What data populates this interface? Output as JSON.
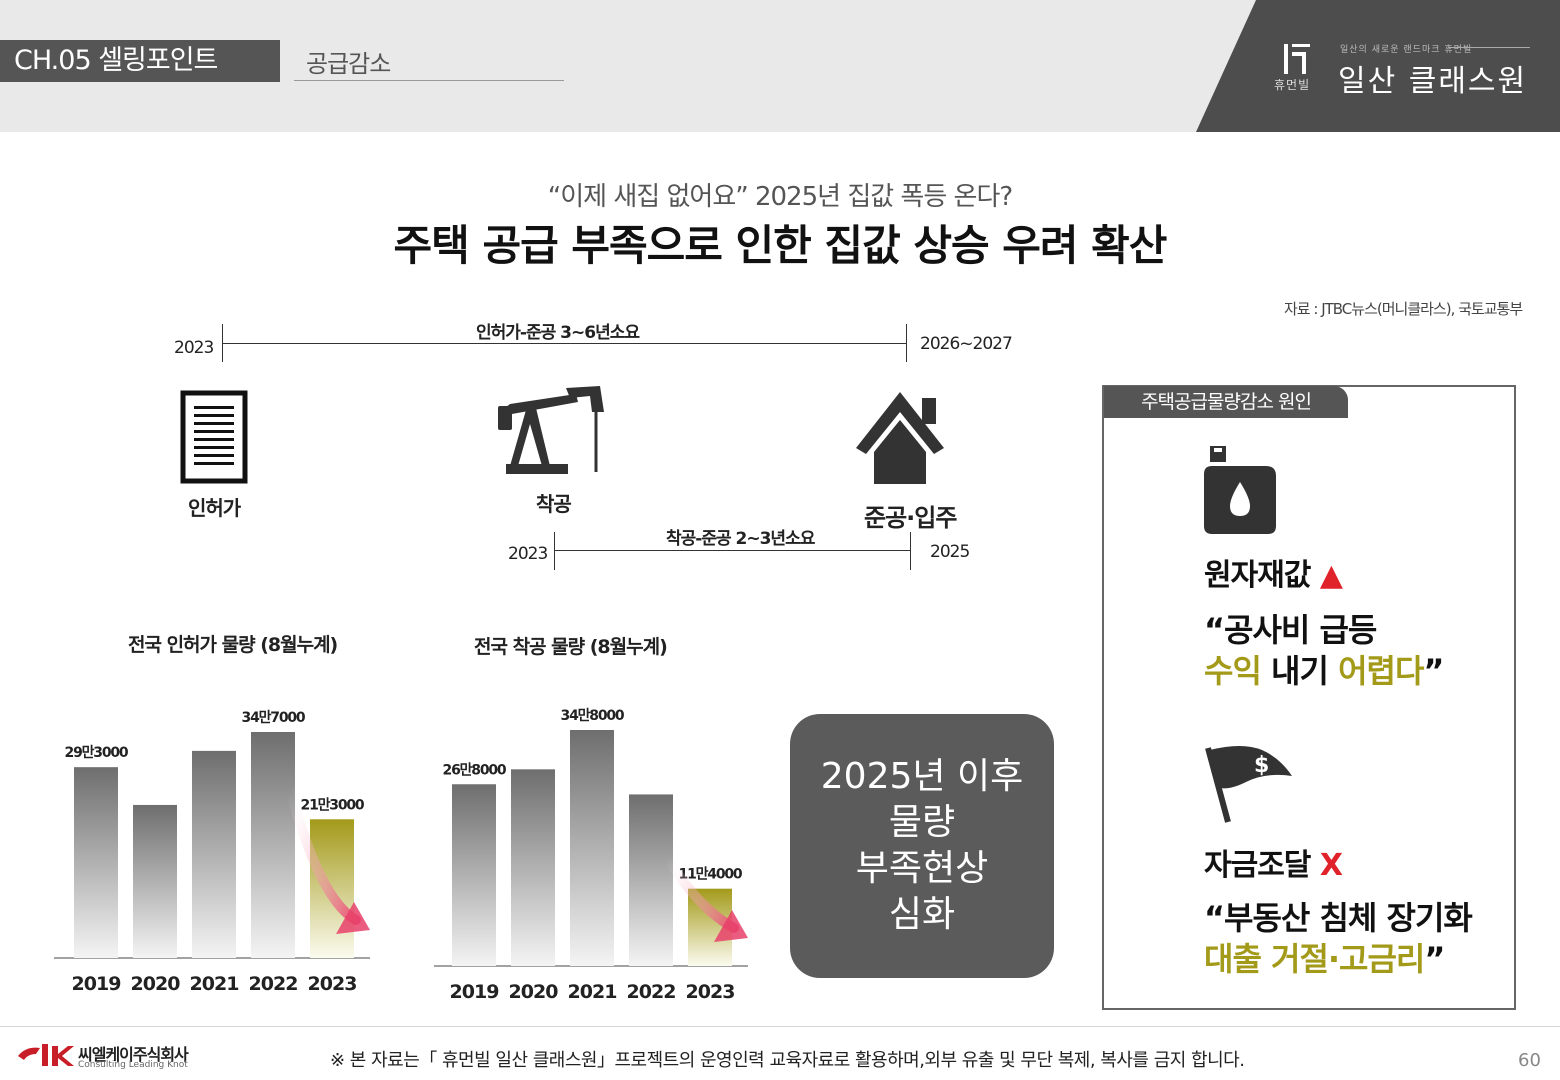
{
  "header": {
    "chapter": "CH.05 셀링포인트",
    "section": "공급감소",
    "brand_logo_text": "휴먼빌",
    "brand_name": "일산 클래스원",
    "brand_small": "일산의 새로운 랜드마크 휴먼빌"
  },
  "headline": {
    "kicker": "“이제 새집 없어요” 2025년 집값 폭등 온다?",
    "title": "주택 공급 부족으로 인한 집값 상승 우려 확산",
    "source": "자료 : JTBC뉴스(머니클라스), 국토교통부"
  },
  "timeline": {
    "top_start": "2023",
    "top_label": "인허가-준공 3~6년소요",
    "top_end": "2026~2027",
    "stage1": "인허가",
    "stage2": "착공",
    "stage3": "준공·입주",
    "bottom_start": "2023",
    "bottom_label": "착공-준공 2~3년소요",
    "bottom_end": "2025"
  },
  "chart_data": [
    {
      "type": "bar",
      "title": "전국 인허가 물량 (8월누계)",
      "categories": [
        "2019",
        "2020",
        "2021",
        "2022",
        "2023"
      ],
      "values": [
        29.3,
        23.5,
        31.8,
        34.7,
        21.3
      ],
      "data_labels": [
        "29만3000",
        "",
        "",
        "34만7000",
        "21만3000"
      ],
      "highlight": "2023",
      "trend_arrow": "down"
    },
    {
      "type": "bar",
      "title": "전국 착공 물량 (8월누계)",
      "categories": [
        "2019",
        "2020",
        "2021",
        "2022",
        "2023"
      ],
      "values": [
        26.8,
        29.0,
        34.8,
        25.3,
        11.4
      ],
      "data_labels": [
        "26만8000",
        "",
        "34만8000",
        "",
        "11만4000"
      ],
      "highlight": "2023",
      "trend_arrow": "down"
    }
  ],
  "callout": {
    "line1": "2025년 이후",
    "line2": "물량",
    "line3": "부족현상",
    "line4": "심화"
  },
  "causes": {
    "tab": "주택공급물량감소 원인",
    "c1_head": "원자재값",
    "c1_mark": "▲",
    "c1_q1": "“공사비 급등",
    "c1_q2a": "수익",
    "c1_q2b": " 내기 ",
    "c1_q2c": "어렵다",
    "c1_q2d": "”",
    "c2_head": "자금조달",
    "c2_mark": "X",
    "c2_q1": "“부동산 침체 장기화",
    "c2_q2a": "대출 거절·고금리",
    "c2_q2b": "”"
  },
  "footer": {
    "company": "씨엘케이주식회사",
    "company_sub": "Consulting Leading Knot",
    "notice": "※ 본 자료는「 휴먼빌 일산 클래스원」프로젝트의 운영인력 교육자료로 활용하며,외부 유출 및 무단 복제, 복사를 금지 합니다.",
    "page": "60"
  },
  "colors": {
    "bar_gray": "#6e6e6e",
    "bar_highlight": "#a39a1a",
    "accent_red": "#e0222a",
    "gold_text": "#a39a1a",
    "dark_panel": "#555555"
  }
}
